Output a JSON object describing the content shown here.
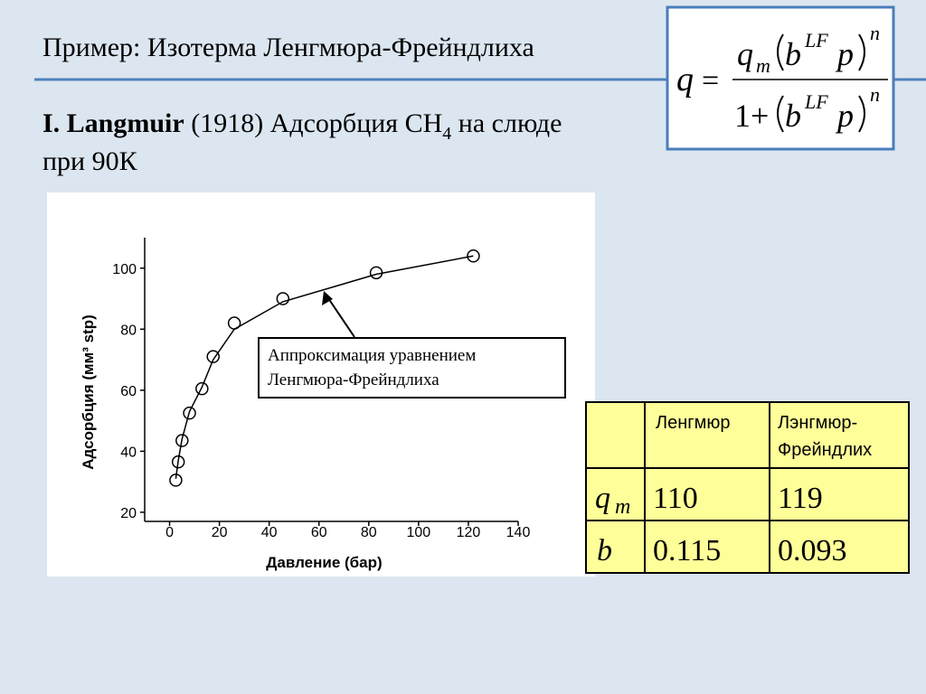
{
  "header": {
    "title": "Пример: Изотерма Ленгмюра-Фрейндлиха"
  },
  "subtitle": {
    "author": "I. Langmuir",
    "text": "(1918) Адсорбция CH",
    "subscript": "4",
    "text_end": "на слюде",
    "line2": "при 90К"
  },
  "formula": {
    "lhs": "q",
    "eq": "=",
    "q": "q",
    "m": "m",
    "b": "b",
    "LF": "LF",
    "p": "p",
    "n": "n",
    "one_plus": "1+"
  },
  "chart_data": {
    "type": "scatter",
    "x_label": "Давление (бар)",
    "y_label": "Адсорбция (мм³ stp)",
    "xlim": [
      -10,
      140
    ],
    "ylim": [
      17,
      110
    ],
    "xticks": [
      0,
      20,
      40,
      60,
      80,
      100,
      120,
      140
    ],
    "yticks": [
      20,
      40,
      60,
      80,
      100
    ],
    "series": [
      {
        "mode": "markers",
        "color": "#000000",
        "x": [
          2.5,
          3.5,
          5,
          8,
          13,
          17.5,
          26,
          45.5,
          83,
          122
        ],
        "values": [
          30.5,
          36.5,
          43.5,
          52.5,
          60.5,
          71,
          82,
          90,
          98.5,
          104
        ]
      },
      {
        "mode": "lines",
        "color": "#000000",
        "x": [
          2.5,
          3.5,
          5,
          8,
          13,
          17.5,
          26,
          45.5,
          83,
          122
        ],
        "values": [
          31,
          37,
          44,
          53,
          61,
          70,
          80,
          89,
          98,
          104
        ]
      }
    ],
    "annotation": [
      "Аппроксимация уравнением",
      "Ленгмюра-Фрейндлиха"
    ]
  },
  "table": {
    "header": [
      "Ленгмюр",
      "Лэнгмюр-",
      "Фрейндлих"
    ],
    "rows": [
      {
        "symbol": "q",
        "sub": "m",
        "values": [
          110,
          119
        ]
      },
      {
        "symbol": "b",
        "values": [
          0.115,
          0.093
        ]
      }
    ]
  }
}
